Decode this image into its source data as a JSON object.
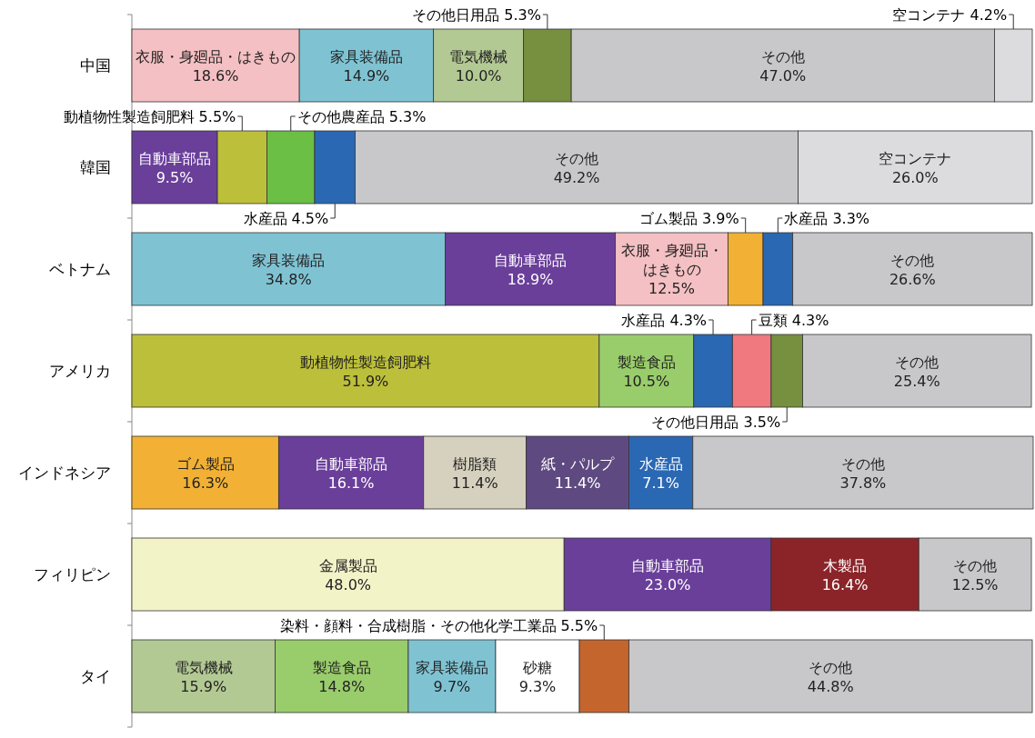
{
  "chart_data": {
    "type": "bar",
    "orientation": "horizontal",
    "stacked": true,
    "tick_labels": "y",
    "xlim": [
      0,
      100.1
    ],
    "categories": [
      "中国",
      "韓国",
      "ベトナム",
      "アメリカ",
      "インドネシア",
      "フィリピン",
      "タイ"
    ],
    "series": [
      {
        "values": [
          18.6,
          9.5,
          34.8,
          51.9,
          16.3,
          48.0,
          15.9
        ],
        "colors": [
          "#f4c0c3",
          "#6a3f9a",
          "#7fc3d3",
          "#bcbf3a",
          "#f2b134",
          "#f3f3c8",
          "#b3c993"
        ],
        "value_labels": [
          "衣服・身廻品・はきもの 18.6%",
          "自動車部品 9.5%",
          "家具装備品 34.8%",
          "動植物性製造飼肥料 51.9%",
          "ゴム製品 16.3%",
          "金属製品 48.0%",
          "電気機械 15.9%"
        ]
      },
      {
        "values": [
          14.9,
          5.5,
          18.9,
          10.5,
          16.1,
          23.0,
          14.8
        ],
        "colors": [
          "#7fc3d3",
          "#bcbf3a",
          "#6a3f9a",
          "#99cc6b",
          "#6a3f9a",
          "#6a3f9a",
          "#99cc6b"
        ],
        "value_labels": [
          "家具装備品 14.9%",
          "動植物性製造飼肥料 5.5%",
          "自動車部品 18.9%",
          "製造食品 10.5%",
          "自動車部品 16.1%",
          "自動車部品 23.0%",
          "製造食品 14.8%"
        ]
      },
      {
        "values": [
          10.0,
          5.3,
          12.5,
          4.3,
          11.4,
          16.4,
          9.7
        ],
        "colors": [
          "#b3c993",
          "#6bbf44",
          "#f4c0c3",
          "#2a68b4",
          "#d6d1be",
          "#8b2429",
          "#7fc3d3"
        ],
        "value_labels": [
          "電気機械 10.0%",
          "その他農産品 5.3%",
          "衣服・身廻品・はきもの 12.5%",
          "水産品 4.3%",
          "樹脂類 11.4%",
          "木製品 16.4%",
          "家具装備品 9.7%"
        ]
      },
      {
        "values": [
          5.3,
          4.5,
          3.9,
          4.3,
          11.4,
          12.5,
          9.3
        ],
        "colors": [
          "#76903f",
          "#2a68b4",
          "#f2b134",
          "#f0787f",
          "#5e4a80",
          "#c8c8ca",
          "#ffffff"
        ],
        "value_labels": [
          "その他日用品 5.3%",
          "水産品 4.5%",
          "ゴム製品 3.9%",
          "豆類 4.3%",
          "紙・パルプ 11.4%",
          "その他 12.5%",
          "砂糖 9.3%"
        ]
      },
      {
        "values": [
          47.0,
          49.2,
          3.3,
          3.5,
          7.1,
          null,
          5.5
        ],
        "colors": [
          "#c8c8ca",
          "#c8c8ca",
          "#2a68b4",
          "#76903f",
          "#2a68b4",
          null,
          "#c4652e"
        ],
        "value_labels": [
          "その他 47.0%",
          "その他 49.2%",
          "水産品 3.3%",
          "その他日用品 3.5%",
          "水産品 7.1%",
          null,
          "染料・顔料・合成樹脂・その他化学工業品 5.5%"
        ]
      },
      {
        "values": [
          4.2,
          26.0,
          26.6,
          25.4,
          37.8,
          null,
          44.8
        ],
        "colors": [
          "#dcdcde",
          "#dcdcde",
          "#c8c8ca",
          "#c8c8ca",
          "#c8c8ca",
          null,
          "#c8c8ca"
        ],
        "value_labels": [
          "空コンテナ 4.2%",
          "空コンテナ 26.0%",
          "その他 26.6%",
          "その他 25.4%",
          "その他 37.8%",
          null,
          "その他 44.8%"
        ]
      }
    ]
  }
}
